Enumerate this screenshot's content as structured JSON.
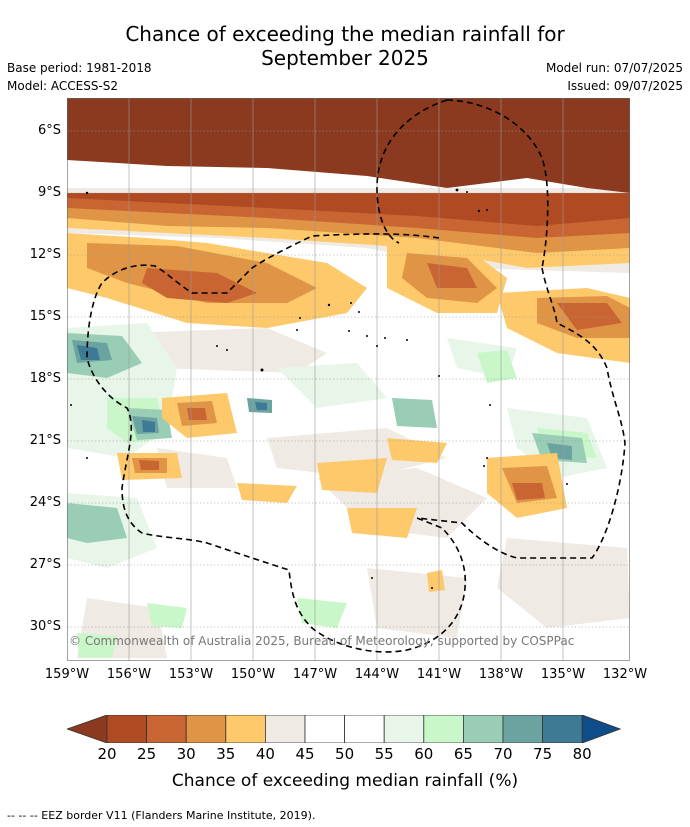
{
  "title_line1": "Chance of exceeding the median rainfall for",
  "title_line2": "September 2025",
  "base_period": "Base period: 1981-2018",
  "model": "Model: ACCESS-S2",
  "model_run": "Model run: 07/07/2025",
  "issued": "Issued: 09/07/2025",
  "lat_labels": [
    "6°S",
    "9°S",
    "12°S",
    "15°S",
    "18°S",
    "21°S",
    "24°S",
    "27°S",
    "30°S"
  ],
  "lon_labels": [
    "159°W",
    "156°W",
    "153°W",
    "150°W",
    "147°W",
    "144°W",
    "141°W",
    "138°W",
    "135°W",
    "132°W"
  ],
  "copyright": "© Commonwealth of Australia 2025, Bureau of Meteorology, supported by COSPPac",
  "colorbar": {
    "ticks": [
      "20",
      "25",
      "30",
      "35",
      "40",
      "45",
      "50",
      "55",
      "60",
      "65",
      "70",
      "75",
      "80"
    ],
    "colors": [
      "#8b3a1f",
      "#b04a22",
      "#c96532",
      "#e09546",
      "#fdc96b",
      "#efeae4",
      "#ffffff",
      "#ffffff",
      "#e8f5e9",
      "#c9f7c9",
      "#99cdb5",
      "#6aa3a0",
      "#3f7a95",
      "#0e4d8a"
    ],
    "label": "Chance of exceeding median rainfall (%)"
  },
  "footnote": "--  --  -- EEZ border V11 (Flanders Marine Institute, 2019)."
}
